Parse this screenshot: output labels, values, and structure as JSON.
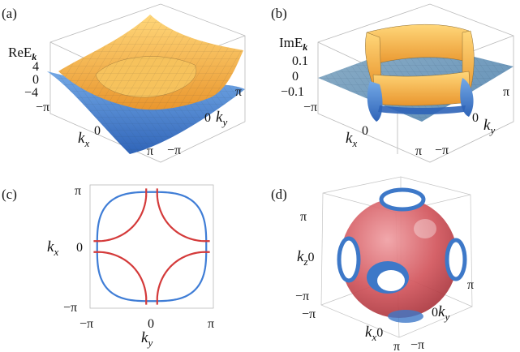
{
  "panels": {
    "a": {
      "label": "(a)",
      "z_title": "ReE",
      "z_sub": "k",
      "z_ticks": [
        "4",
        "0",
        "−4"
      ],
      "x_ticks": [
        "−π",
        "0",
        "π"
      ],
      "x_label": "k",
      "x_sub": "x",
      "y_ticks": [
        "π",
        "0",
        "−π"
      ],
      "y_label": "k",
      "y_sub": "y"
    },
    "b": {
      "label": "(b)",
      "z_title": "ImE",
      "z_sub": "k",
      "z_ticks": [
        "0.1",
        "0",
        "−0.1"
      ],
      "x_ticks": [
        "−π",
        "0",
        "π"
      ],
      "x_label": "k",
      "x_sub": "x",
      "y_ticks": [
        "π",
        "0",
        "−π"
      ],
      "y_label": "k",
      "y_sub": "y"
    },
    "c": {
      "label": "(c)",
      "y_ticks": [
        "π",
        "0",
        "−π"
      ],
      "y_label": "k",
      "y_sub": "x",
      "x_ticks": [
        "−π",
        "0",
        "π"
      ],
      "x_label": "k",
      "x_sub": "y"
    },
    "d": {
      "label": "(d)",
      "z_ticks": [
        "π",
        "0",
        "−π"
      ],
      "z_label": "k",
      "z_sub": "z",
      "x_ticks": [
        "−π",
        "0",
        "π"
      ],
      "x_label": "k",
      "x_sub": "x",
      "y_ticks": [
        "π",
        "0",
        "−π"
      ],
      "y_label": "k",
      "y_sub": "y"
    }
  },
  "chart_data": {
    "type": "line",
    "panel": "c",
    "xlim": [
      -3.1416,
      3.1416
    ],
    "ylim": [
      -3.1416,
      3.1416
    ],
    "grid": false,
    "colors": {
      "blue": "#3f7dd6",
      "red": "#d43a3a"
    },
    "series": [
      {
        "kind": "closed-loop",
        "color": "blue",
        "shape_exponent": 3,
        "radius_x": 2.78,
        "radius_y": 2.78,
        "center": [
          0,
          0
        ]
      },
      {
        "kind": "four-arcs",
        "color": "red",
        "corners": [
          [
            -3.1416,
            3.1416
          ],
          [
            3.1416,
            3.1416
          ],
          [
            -3.1416,
            -3.1416
          ],
          [
            3.1416,
            -3.1416
          ]
        ],
        "axis_intercept": 2.84,
        "edge_intercept": 0.28
      }
    ]
  },
  "colors": {
    "surface_orange": "#f0b24a",
    "surface_blue": "#4f8ed6",
    "ring_red": "#d24a50",
    "ring_blue": "#3d78c8",
    "mesh": "#6b5a3c"
  }
}
